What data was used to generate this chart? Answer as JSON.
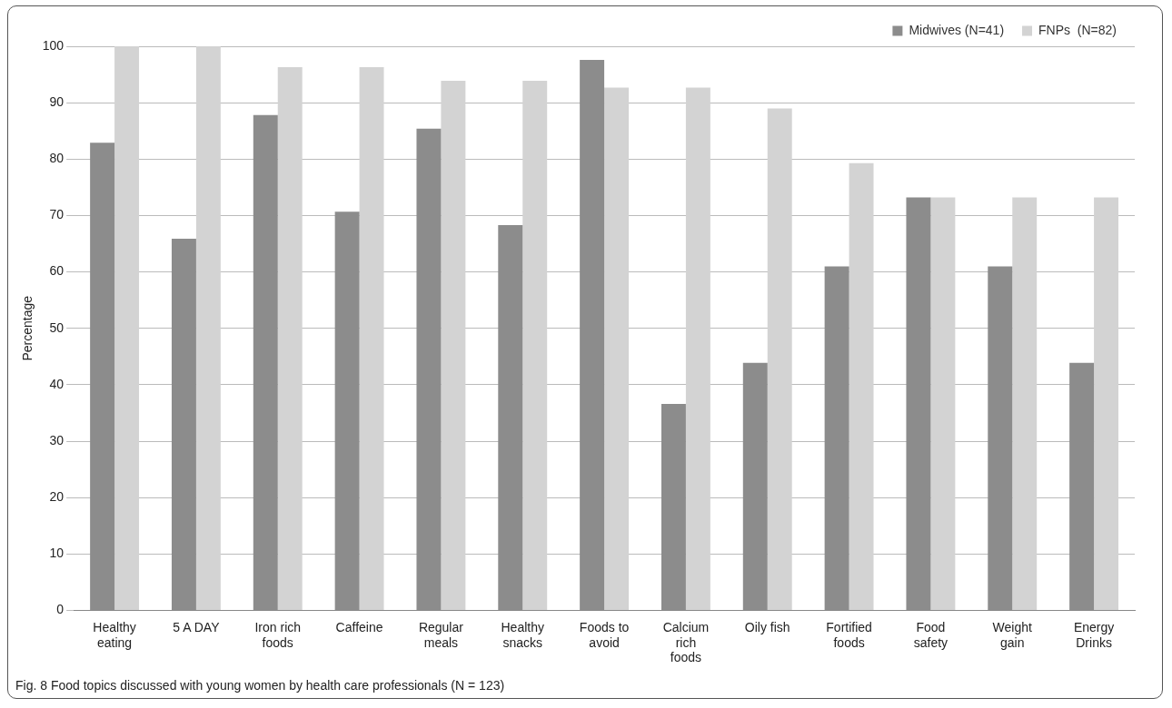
{
  "chart_data": {
    "type": "bar",
    "ylabel": "Percentage",
    "categories": [
      "Healthy eating",
      "5 A DAY",
      "Iron rich foods",
      "Caffeine",
      "Regular meals",
      "Healthy snacks",
      "Foods to avoid",
      "Calcium rich foods",
      "Oily fish",
      "Fortified foods",
      "Food safety",
      "Weight gain",
      "Energy Drinks"
    ],
    "series": [
      {
        "name": "Midwives (N=41)",
        "color": "#8c8c8c",
        "values": [
          82.9,
          65.9,
          87.8,
          70.7,
          85.4,
          68.3,
          97.6,
          36.6,
          43.9,
          61.0,
          73.2,
          61.0,
          43.9
        ]
      },
      {
        "name": "FNPs  (N=82)",
        "color": "#d3d3d3",
        "values": [
          100,
          100,
          96.3,
          96.3,
          93.9,
          93.9,
          92.7,
          92.7,
          89.0,
          79.3,
          73.2,
          73.2,
          73.2
        ]
      }
    ],
    "ylim": [
      0,
      100
    ],
    "yticks": [
      0,
      10,
      20,
      30,
      40,
      50,
      60,
      70,
      80,
      90,
      100
    ],
    "grid": "y",
    "legend": "top right",
    "annotations": [
      "Fig. 8 Food topics discussed with young women by health care professionals (N = 123)"
    ]
  }
}
